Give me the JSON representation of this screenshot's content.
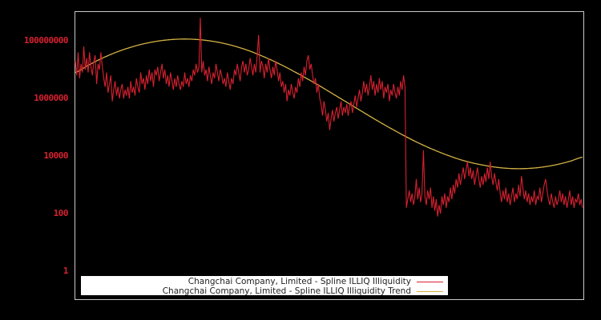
{
  "chart_data": {
    "type": "line",
    "title": "",
    "xlabel": "",
    "ylabel": "",
    "yscale": "log",
    "ylim": [
      0.107,
      1070000000
    ],
    "grid": false,
    "legend_position": "lower center",
    "yticks": [
      {
        "label": "100000000",
        "value": 100000000
      },
      {
        "label": "1000000",
        "value": 1000000
      },
      {
        "label": "10000",
        "value": 10000
      },
      {
        "label": "100",
        "value": 100
      },
      {
        "label": "1",
        "value": 1
      }
    ],
    "series": [
      {
        "name": "Changchai Company, Limited - Spline ILLIQ Illiquidity",
        "color": "#d62130",
        "log10_values": [
          7.3,
          6.8,
          7.6,
          6.7,
          7.2,
          6.9,
          7.8,
          7.0,
          7.4,
          6.9,
          7.6,
          7.1,
          6.8,
          7.3,
          7.5,
          6.5,
          7.2,
          7.0,
          7.6,
          7.1,
          6.7,
          6.4,
          6.9,
          6.2,
          6.5,
          6.8,
          5.9,
          6.3,
          6.6,
          6.1,
          6.4,
          6.0,
          6.3,
          6.5,
          6.0,
          6.3,
          6.1,
          6.4,
          6.0,
          6.6,
          6.2,
          6.4,
          6.1,
          6.7,
          6.4,
          6.2,
          6.9,
          6.5,
          6.7,
          6.3,
          6.8,
          6.5,
          7.0,
          6.6,
          6.9,
          6.4,
          7.0,
          6.8,
          7.1,
          6.6,
          6.9,
          7.2,
          6.7,
          7.0,
          6.5,
          6.8,
          6.4,
          6.9,
          6.6,
          6.3,
          6.7,
          6.4,
          6.8,
          6.5,
          6.3,
          6.6,
          6.4,
          6.9,
          6.5,
          6.7,
          6.4,
          6.8,
          6.6,
          7.0,
          6.8,
          7.2,
          6.9,
          7.1,
          8.8,
          6.9,
          7.3,
          6.8,
          7.0,
          6.6,
          7.1,
          6.8,
          6.5,
          6.9,
          6.7,
          7.2,
          6.9,
          6.6,
          7.0,
          6.8,
          6.5,
          6.7,
          6.4,
          6.9,
          6.6,
          6.3,
          6.7,
          6.5,
          7.0,
          6.8,
          7.2,
          6.9,
          6.6,
          7.1,
          7.3,
          6.9,
          7.2,
          6.8,
          7.0,
          7.4,
          7.1,
          6.8,
          7.2,
          6.9,
          7.5,
          8.2,
          6.9,
          7.3,
          7.1,
          6.7,
          7.2,
          6.9,
          7.4,
          7.0,
          6.7,
          7.1,
          6.8,
          7.3,
          7.0,
          6.6,
          6.9,
          6.4,
          6.6,
          6.2,
          6.5,
          5.9,
          6.3,
          6.1,
          6.5,
          6.2,
          6.0,
          6.4,
          6.2,
          6.7,
          6.4,
          6.9,
          6.6,
          7.1,
          6.8,
          7.3,
          7.5,
          7.0,
          7.2,
          6.8,
          6.5,
          6.7,
          6.2,
          6.5,
          6.0,
          5.8,
          5.4,
          5.9,
          5.6,
          5.2,
          5.5,
          4.9,
          5.3,
          5.6,
          5.2,
          5.5,
          5.7,
          5.3,
          5.6,
          5.9,
          5.4,
          5.7,
          5.5,
          5.8,
          5.4,
          5.7,
          5.9,
          5.5,
          5.8,
          6.1,
          5.7,
          6.0,
          6.3,
          5.9,
          6.2,
          6.6,
          6.2,
          6.5,
          6.1,
          6.4,
          6.8,
          6.3,
          6.6,
          6.1,
          6.5,
          6.2,
          6.7,
          6.3,
          6.6,
          6.0,
          6.4,
          6.2,
          6.5,
          5.9,
          6.3,
          6.1,
          6.5,
          6.2,
          6.0,
          6.4,
          6.1,
          6.6,
          6.3,
          6.8,
          6.4,
          2.2,
          2.5,
          2.8,
          2.4,
          2.7,
          2.3,
          2.6,
          3.2,
          2.5,
          2.9,
          2.4,
          2.7,
          4.2,
          2.6,
          2.3,
          2.8,
          2.5,
          2.9,
          2.2,
          2.6,
          2.1,
          2.5,
          1.9,
          2.3,
          2.0,
          2.6,
          2.3,
          2.7,
          2.2,
          2.6,
          2.4,
          2.9,
          2.5,
          3.0,
          2.7,
          3.2,
          2.9,
          3.4,
          3.0,
          3.3,
          3.6,
          3.2,
          3.5,
          3.8,
          3.3,
          3.6,
          3.2,
          3.5,
          3.0,
          3.3,
          3.6,
          3.2,
          2.9,
          3.3,
          3.0,
          3.4,
          3.1,
          3.6,
          3.2,
          3.8,
          3.3,
          3.0,
          3.4,
          3.1,
          2.8,
          3.2,
          2.7,
          2.4,
          2.8,
          2.5,
          2.9,
          2.4,
          2.7,
          2.3,
          2.6,
          2.9,
          2.4,
          2.7,
          2.5,
          3.0,
          2.6,
          3.3,
          2.9,
          2.5,
          2.8,
          2.4,
          2.7,
          2.3,
          2.6,
          2.4,
          2.8,
          2.3,
          2.6,
          2.5,
          2.9,
          2.4,
          2.7,
          3.0,
          3.2,
          2.8,
          2.5,
          2.3,
          2.7,
          2.4,
          2.2,
          2.6,
          2.3,
          2.5,
          2.8,
          2.4,
          2.7,
          2.3,
          2.6,
          2.2,
          2.5,
          2.8,
          2.3,
          2.6,
          2.2,
          2.5,
          2.4,
          2.7,
          2.3,
          2.5,
          2.2
        ]
      },
      {
        "name": "Changchai Company, Limited - Spline ILLIQ Illiquidity Trend",
        "color": "#d4b245",
        "log10_values": [
          6.9,
          7.14,
          7.36,
          7.55,
          7.71,
          7.84,
          7.94,
          8.01,
          8.05,
          8.06,
          8.04,
          7.99,
          7.91,
          7.8,
          7.66,
          7.49,
          7.3,
          7.09,
          6.86,
          6.62,
          6.37,
          6.11,
          5.85,
          5.59,
          5.33,
          5.08,
          4.84,
          4.61,
          4.4,
          4.21,
          4.04,
          3.89,
          3.77,
          3.68,
          3.61,
          3.57,
          3.56,
          3.58,
          3.63,
          3.71,
          3.82,
          3.96
        ]
      }
    ]
  },
  "legend": {
    "items": [
      {
        "label": "Changchai Company, Limited - Spline ILLIQ Illiquidity",
        "color": "#d62130"
      },
      {
        "label": "Changchai Company, Limited - Spline ILLIQ Illiquidity Trend",
        "color": "#d4b245"
      }
    ]
  },
  "axis": {
    "ytick_labels": [
      "100000000",
      "1000000",
      "10000",
      "100",
      "1"
    ]
  }
}
